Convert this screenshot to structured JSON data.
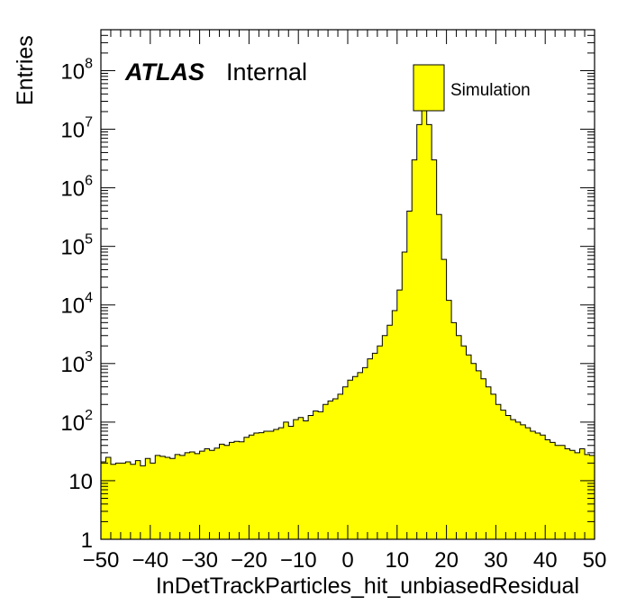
{
  "chart_data": {
    "type": "bar",
    "xlabel": "InDetTrackParticles_hit_unbiasedResidual",
    "ylabel": "Entries",
    "xlim": [
      -50,
      50
    ],
    "ylim": [
      1,
      500000000
    ],
    "log_y": true,
    "x_ticks": [
      "−50",
      "−40",
      "−30",
      "−20",
      "−10",
      "0",
      "10",
      "20",
      "30",
      "40",
      "50"
    ],
    "y_ticks": [
      {
        "base": "1",
        "exp": ""
      },
      {
        "base": "10",
        "exp": ""
      },
      {
        "base": "10",
        "exp": "2"
      },
      {
        "base": "10",
        "exp": "3"
      },
      {
        "base": "10",
        "exp": "4"
      },
      {
        "base": "10",
        "exp": "5"
      },
      {
        "base": "10",
        "exp": "6"
      },
      {
        "base": "10",
        "exp": "7"
      },
      {
        "base": "10",
        "exp": "8"
      }
    ],
    "bin_width": 1,
    "bin_edges_start": -50,
    "series": [
      {
        "name": "Simulation",
        "color": "#ffff00",
        "values": [
          21,
          25,
          19,
          20,
          20,
          21,
          19,
          22,
          18,
          24,
          20,
          27,
          26,
          25,
          24,
          28,
          27,
          30,
          31,
          29,
          32,
          35,
          33,
          36,
          42,
          40,
          45,
          47,
          46,
          55,
          60,
          65,
          66,
          70,
          70,
          75,
          80,
          100,
          85,
          110,
          120,
          105,
          130,
          155,
          150,
          200,
          230,
          250,
          300,
          400,
          520,
          600,
          700,
          850,
          1200,
          1500,
          2000,
          3000,
          4500,
          8000,
          18000,
          80000,
          400000,
          3000000,
          12000000,
          35000000,
          12000000,
          3000000,
          350000,
          60000,
          12000,
          5000,
          3000,
          2000,
          1400,
          1000,
          750,
          550,
          400,
          300,
          200,
          160,
          130,
          110,
          100,
          90,
          80,
          70,
          65,
          60,
          50,
          45,
          40,
          40,
          35,
          33,
          30,
          35,
          28,
          27
        ]
      }
    ],
    "legend": {
      "label": "Simulation",
      "position": "top-right"
    },
    "annotation": {
      "experiment": "ATLAS",
      "status": "Internal"
    }
  }
}
